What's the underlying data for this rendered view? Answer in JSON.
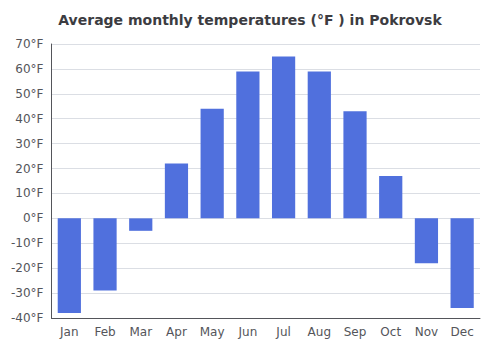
{
  "chart_data": {
    "type": "bar",
    "title": "Average monthly temperatures (°F ) in Pokrovsk",
    "categories": [
      "Jan",
      "Feb",
      "Mar",
      "Apr",
      "May",
      "Jun",
      "Jul",
      "Aug",
      "Sep",
      "Oct",
      "Nov",
      "Dec"
    ],
    "values": [
      -38,
      -29,
      -5,
      22,
      44,
      59,
      65,
      59,
      43,
      17,
      -18,
      -36
    ],
    "ylim": [
      -40,
      70
    ],
    "yticks": [
      {
        "value": -40,
        "label": "-40°F"
      },
      {
        "value": -30,
        "label": "-30°F"
      },
      {
        "value": -20,
        "label": "-20°F"
      },
      {
        "value": -10,
        "label": "-10°F"
      },
      {
        "value": 0,
        "label": "0°F"
      },
      {
        "value": 10,
        "label": "10°F"
      },
      {
        "value": 20,
        "label": "20°F"
      },
      {
        "value": 30,
        "label": "30°F"
      },
      {
        "value": 40,
        "label": "40°F"
      },
      {
        "value": 50,
        "label": "50°F"
      },
      {
        "value": 60,
        "label": "60°F"
      },
      {
        "value": 70,
        "label": "70°F"
      }
    ],
    "grid": true
  }
}
